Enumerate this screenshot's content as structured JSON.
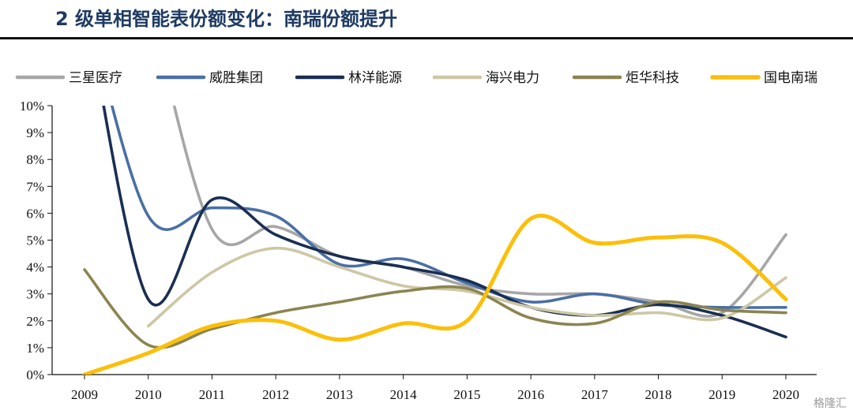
{
  "title": "2 级单相智能表份额变化：南瑞份额提升",
  "watermark": "格隆汇",
  "chart_data": {
    "type": "line",
    "x": [
      "2009",
      "2010",
      "2011",
      "2012",
      "2013",
      "2014",
      "2015",
      "2016",
      "2017",
      "2018",
      "2019",
      "2020"
    ],
    "ylim": [
      0,
      0.1
    ],
    "yticks": [
      "0%",
      "1%",
      "2%",
      "3%",
      "4%",
      "5%",
      "6%",
      "7%",
      "8%",
      "9%",
      "10%"
    ],
    "legend_position": "top",
    "series": [
      {
        "name": "三星医疗",
        "color": "#a6a6a6",
        "values": [
          null,
          0.14,
          0.054,
          0.055,
          0.044,
          0.04,
          0.033,
          0.03,
          0.03,
          0.027,
          0.023,
          0.052
        ]
      },
      {
        "name": "威胜集团",
        "color": "#4a6fa5",
        "values": [
          0.14,
          0.059,
          0.062,
          0.059,
          0.041,
          0.043,
          0.034,
          0.027,
          0.03,
          0.026,
          0.025,
          0.025
        ]
      },
      {
        "name": "林洋能源",
        "color": "#1a2e52",
        "values": [
          0.14,
          0.028,
          0.065,
          0.052,
          0.044,
          0.04,
          0.035,
          0.025,
          0.022,
          0.026,
          0.022,
          0.014
        ]
      },
      {
        "name": "海兴电力",
        "color": "#cdc7a5",
        "values": [
          null,
          0.018,
          0.038,
          0.047,
          0.04,
          0.033,
          0.031,
          0.025,
          0.022,
          0.023,
          0.021,
          0.036
        ]
      },
      {
        "name": "炬华科技",
        "color": "#8b8450",
        "values": [
          0.039,
          0.011,
          0.017,
          0.023,
          0.027,
          0.031,
          0.032,
          0.021,
          0.019,
          0.027,
          0.024,
          0.023
        ]
      },
      {
        "name": "国电南瑞",
        "color": "#fcbf09",
        "values": [
          0.0,
          0.008,
          0.018,
          0.02,
          0.013,
          0.019,
          0.02,
          0.058,
          0.049,
          0.051,
          0.049,
          0.028
        ]
      }
    ]
  }
}
